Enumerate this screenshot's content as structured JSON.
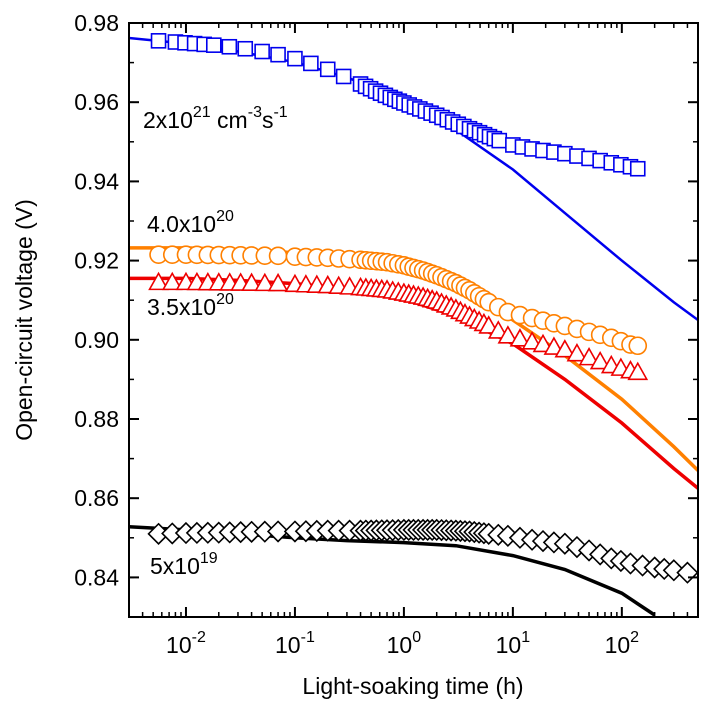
{
  "chart_data": {
    "type": "scatter",
    "xlabel": "Light-soaking time (h)",
    "ylabel": "Open-circuit voltage (V)",
    "xscale": "log",
    "xlim": [
      0.003,
      500
    ],
    "ylim": [
      0.83,
      0.98
    ],
    "x_ticks": [
      0.01,
      0.1,
      1,
      10,
      100
    ],
    "x_tick_labels": [
      {
        "base": "10",
        "exp": "-2"
      },
      {
        "base": "10",
        "exp": "-1"
      },
      {
        "base": "10",
        "exp": "0"
      },
      {
        "base": "10",
        "exp": "1"
      },
      {
        "base": "10",
        "exp": "2"
      }
    ],
    "y_ticks": [
      0.84,
      0.86,
      0.88,
      0.9,
      0.92,
      0.94,
      0.96,
      0.98
    ],
    "y_tick_labels": [
      "0.84",
      "0.86",
      "0.88",
      "0.90",
      "0.92",
      "0.94",
      "0.96",
      "0.98"
    ],
    "series": [
      {
        "marker": "square",
        "color": "#0000ee",
        "label": {
          "base": "2x10",
          "exp": "21",
          "unit": " cm",
          "unit_exp": "-3",
          "unit2": "s",
          "unit2_exp": "-1"
        },
        "points": [
          [
            0.0056,
            0.9755
          ],
          [
            0.008,
            0.9752
          ],
          [
            0.012,
            0.9748
          ],
          [
            0.018,
            0.9744
          ],
          [
            0.025,
            0.974
          ],
          [
            0.035,
            0.9735
          ],
          [
            0.05,
            0.9728
          ],
          [
            0.07,
            0.972
          ],
          [
            0.1,
            0.971
          ],
          [
            0.14,
            0.9698
          ],
          [
            0.2,
            0.9683
          ],
          [
            0.28,
            0.9665
          ],
          [
            0.4,
            0.9646
          ],
          [
            0.55,
            0.9628
          ],
          [
            0.75,
            0.9612
          ],
          [
            1.0,
            0.9598
          ],
          [
            1.4,
            0.9583
          ],
          [
            2.0,
            0.9567
          ],
          [
            2.8,
            0.955
          ],
          [
            4.0,
            0.9533
          ],
          [
            5.5,
            0.9518
          ],
          [
            7.5,
            0.9503
          ],
          [
            10,
            0.9492
          ],
          [
            15,
            0.9482
          ],
          [
            30,
            0.947
          ],
          [
            50,
            0.9458
          ],
          [
            80,
            0.9447
          ],
          [
            120,
            0.9437
          ],
          [
            140,
            0.9432
          ]
        ],
        "fit": [
          [
            0.003,
            0.9762
          ],
          [
            0.01,
            0.9748
          ],
          [
            0.03,
            0.9728
          ],
          [
            0.1,
            0.9701
          ],
          [
            0.3,
            0.9663
          ],
          [
            1,
            0.9605
          ],
          [
            3,
            0.953
          ],
          [
            10,
            0.943
          ],
          [
            30,
            0.932
          ],
          [
            100,
            0.92
          ],
          [
            300,
            0.9095
          ],
          [
            500,
            0.905
          ]
        ]
      },
      {
        "marker": "circle",
        "color": "#ff8000",
        "label": {
          "base": "4.0x10",
          "exp": "20"
        },
        "points": [
          [
            0.0056,
            0.9215
          ],
          [
            0.01,
            0.9215
          ],
          [
            0.02,
            0.9214
          ],
          [
            0.04,
            0.9213
          ],
          [
            0.07,
            0.9212
          ],
          [
            0.1,
            0.921
          ],
          [
            0.2,
            0.9207
          ],
          [
            0.4,
            0.9202
          ],
          [
            0.7,
            0.9196
          ],
          [
            1.0,
            0.9188
          ],
          [
            1.5,
            0.9175
          ],
          [
            2.0,
            0.9163
          ],
          [
            3.0,
            0.9143
          ],
          [
            4.0,
            0.9125
          ],
          [
            6.0,
            0.9095
          ],
          [
            9,
            0.907
          ],
          [
            15,
            0.9055
          ],
          [
            30,
            0.9035
          ],
          [
            50,
            0.902
          ],
          [
            80,
            0.9005
          ],
          [
            120,
            0.8988
          ],
          [
            140,
            0.8985
          ]
        ],
        "fit": [
          [
            0.003,
            0.9232
          ],
          [
            0.01,
            0.9232
          ],
          [
            0.03,
            0.9228
          ],
          [
            0.1,
            0.922
          ],
          [
            0.3,
            0.9208
          ],
          [
            1,
            0.918
          ],
          [
            3,
            0.913
          ],
          [
            10,
            0.905
          ],
          [
            30,
            0.896
          ],
          [
            100,
            0.885
          ],
          [
            300,
            0.873
          ],
          [
            500,
            0.867
          ]
        ]
      },
      {
        "marker": "triangle",
        "color": "#ee0000",
        "label": {
          "base": "3.5x10",
          "exp": "20"
        },
        "points": [
          [
            0.0056,
            0.9145
          ],
          [
            0.01,
            0.9145
          ],
          [
            0.02,
            0.9144
          ],
          [
            0.04,
            0.9143
          ],
          [
            0.07,
            0.9142
          ],
          [
            0.1,
            0.914
          ],
          [
            0.2,
            0.9137
          ],
          [
            0.4,
            0.9132
          ],
          [
            0.7,
            0.9126
          ],
          [
            1.0,
            0.9118
          ],
          [
            1.5,
            0.9108
          ],
          [
            2.0,
            0.9098
          ],
          [
            3.0,
            0.9078
          ],
          [
            4.0,
            0.906
          ],
          [
            6.0,
            0.9035
          ],
          [
            9,
            0.901
          ],
          [
            15,
            0.8995
          ],
          [
            30,
            0.8975
          ],
          [
            50,
            0.8955
          ],
          [
            80,
            0.8935
          ],
          [
            120,
            0.8922
          ],
          [
            140,
            0.8918
          ]
        ],
        "fit": [
          [
            0.003,
            0.9155
          ],
          [
            0.01,
            0.9155
          ],
          [
            0.03,
            0.915
          ],
          [
            0.1,
            0.9142
          ],
          [
            0.3,
            0.913
          ],
          [
            1,
            0.9103
          ],
          [
            3,
            0.906
          ],
          [
            10,
            0.899
          ],
          [
            30,
            0.89
          ],
          [
            100,
            0.879
          ],
          [
            300,
            0.8675
          ],
          [
            500,
            0.8625
          ]
        ]
      },
      {
        "marker": "diamond",
        "color": "#000000",
        "label": {
          "base": "5x10",
          "exp": "19"
        },
        "points": [
          [
            0.0056,
            0.851
          ],
          [
            0.01,
            0.8512
          ],
          [
            0.02,
            0.8513
          ],
          [
            0.04,
            0.8515
          ],
          [
            0.07,
            0.8516
          ],
          [
            0.1,
            0.8516
          ],
          [
            0.2,
            0.8518
          ],
          [
            0.4,
            0.8518
          ],
          [
            0.7,
            0.8519
          ],
          [
            1.0,
            0.852
          ],
          [
            1.5,
            0.852
          ],
          [
            2.0,
            0.852
          ],
          [
            3.0,
            0.8518
          ],
          [
            4.0,
            0.8516
          ],
          [
            6.0,
            0.851
          ],
          [
            9,
            0.8505
          ],
          [
            15,
            0.8495
          ],
          [
            30,
            0.8485
          ],
          [
            50,
            0.8468
          ],
          [
            80,
            0.8448
          ],
          [
            120,
            0.8435
          ],
          [
            200,
            0.8425
          ],
          [
            300,
            0.8418
          ],
          [
            400,
            0.8412
          ]
        ],
        "fit": [
          [
            0.003,
            0.8528
          ],
          [
            0.01,
            0.852
          ],
          [
            0.03,
            0.851
          ],
          [
            0.1,
            0.85
          ],
          [
            0.3,
            0.8493
          ],
          [
            1,
            0.8488
          ],
          [
            3,
            0.848
          ],
          [
            10,
            0.8455
          ],
          [
            30,
            0.842
          ],
          [
            100,
            0.836
          ],
          [
            200,
            0.8305
          ]
        ]
      }
    ]
  }
}
